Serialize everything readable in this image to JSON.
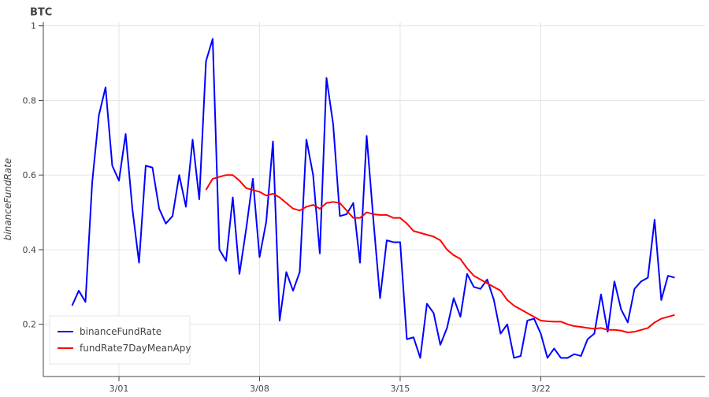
{
  "chart_data": {
    "type": "line",
    "title": "BTC",
    "y_label": "binanceFundRate",
    "x": [
      -2.333,
      -2,
      -1.667,
      -1.333,
      -1,
      -0.667,
      -0.333,
      0,
      0.333,
      0.667,
      1,
      1.333,
      1.667,
      2,
      2.333,
      2.667,
      3,
      3.333,
      3.667,
      4,
      4.333,
      4.667,
      5,
      5.333,
      5.667,
      6,
      6.333,
      6.667,
      7,
      7.333,
      7.667,
      8,
      8.333,
      8.667,
      9,
      9.333,
      9.667,
      10,
      10.333,
      10.667,
      11,
      11.333,
      11.667,
      12,
      12.333,
      12.667,
      13,
      13.333,
      13.667,
      14,
      14.333,
      14.667,
      15,
      15.333,
      15.667,
      16,
      16.333,
      16.667,
      17,
      17.333,
      17.667,
      18,
      18.333,
      18.667,
      19,
      19.333,
      19.667,
      20,
      20.333,
      20.667,
      21,
      21.333,
      21.667,
      22,
      22.333,
      22.667,
      23,
      23.333,
      23.667,
      24,
      24.333,
      24.667,
      25,
      25.333,
      25.667,
      26,
      26.333,
      26.667,
      27,
      27.333,
      27.667
    ],
    "series": [
      {
        "name": "binanceFundRate",
        "color": "#0000ff",
        "values": [
          0.25,
          0.29,
          0.26,
          0.58,
          0.76,
          0.835,
          0.625,
          0.585,
          0.71,
          0.51,
          0.365,
          0.625,
          0.62,
          0.51,
          0.47,
          0.49,
          0.6,
          0.515,
          0.695,
          0.535,
          0.905,
          0.965,
          0.4,
          0.37,
          0.54,
          0.335,
          0.455,
          0.59,
          0.38,
          0.475,
          0.69,
          0.21,
          0.34,
          0.29,
          0.34,
          0.695,
          0.6,
          0.39,
          0.86,
          0.735,
          0.49,
          0.495,
          0.525,
          0.365,
          0.705,
          0.48,
          0.27,
          0.425,
          0.42,
          0.42,
          0.16,
          0.165,
          0.11,
          0.255,
          0.23,
          0.145,
          0.19,
          0.27,
          0.22,
          0.335,
          0.3,
          0.295,
          0.32,
          0.265,
          0.175,
          0.2,
          0.11,
          0.115,
          0.21,
          0.215,
          0.175,
          0.11,
          0.135,
          0.11,
          0.11,
          0.12,
          0.115,
          0.16,
          0.175,
          0.28,
          0.18,
          0.315,
          0.24,
          0.205,
          0.295,
          0.315,
          0.325,
          0.48,
          0.265,
          0.33,
          0.325
        ]
      },
      {
        "name": "fundRate7DayMeanApy",
        "color": "#ff0000",
        "values": [
          null,
          null,
          null,
          null,
          null,
          null,
          null,
          null,
          null,
          null,
          null,
          null,
          null,
          null,
          null,
          null,
          null,
          null,
          null,
          null,
          0.56,
          0.59,
          0.595,
          0.6,
          0.6,
          0.585,
          0.565,
          0.56,
          0.555,
          0.545,
          0.55,
          0.54,
          0.525,
          0.51,
          0.505,
          0.515,
          0.52,
          0.51,
          0.525,
          0.528,
          0.525,
          0.505,
          0.485,
          0.485,
          0.5,
          0.495,
          0.493,
          0.493,
          0.485,
          0.485,
          0.47,
          0.45,
          0.445,
          0.44,
          0.435,
          0.425,
          0.4,
          0.385,
          0.375,
          0.35,
          0.33,
          0.32,
          0.31,
          0.3,
          0.29,
          0.265,
          0.25,
          0.24,
          0.23,
          0.22,
          0.21,
          0.208,
          0.207,
          0.207,
          0.2,
          0.195,
          0.193,
          0.19,
          0.188,
          0.19,
          0.185,
          0.185,
          0.183,
          0.178,
          0.18,
          0.185,
          0.19,
          0.205,
          0.215,
          0.22,
          0.225
        ]
      }
    ],
    "xlim": [
      -3.765,
      29.18
    ],
    "ylim": [
      0.06,
      1.01
    ],
    "xticks": [
      {
        "value": 0,
        "label": "3/01"
      },
      {
        "value": 7,
        "label": "3/08"
      },
      {
        "value": 14,
        "label": "3/15"
      },
      {
        "value": 21,
        "label": "3/22"
      }
    ],
    "yticks": [
      0.2,
      0.4,
      0.6,
      0.8,
      1
    ],
    "grid": true,
    "legend": "bottom-left"
  }
}
